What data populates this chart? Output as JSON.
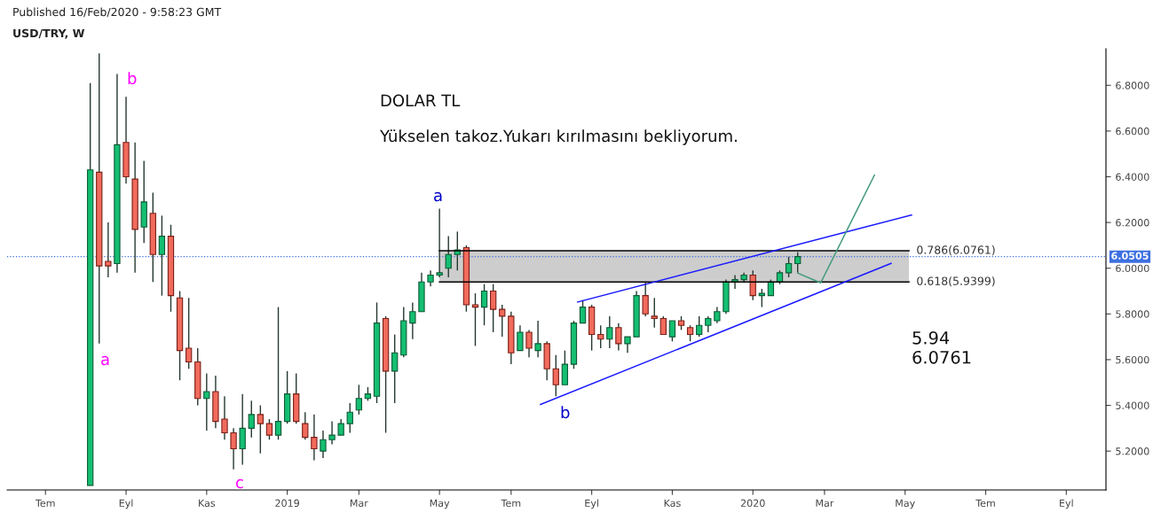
{
  "chart_data": {
    "type": "candlestick",
    "title": "USD/TRY, W",
    "subtitle": "Published 16/Feb/2020 - 9:58:23 GMT",
    "x": [
      "2018-08-06",
      "2018-08-13",
      "2018-08-20",
      "2018-08-27",
      "2018-09-03",
      "2018-09-10",
      "2018-09-17",
      "2018-09-24",
      "2018-10-01",
      "2018-10-08",
      "2018-10-15",
      "2018-10-22",
      "2018-10-29",
      "2018-11-05",
      "2018-11-12",
      "2018-11-19",
      "2018-11-26",
      "2018-12-03",
      "2018-12-10",
      "2018-12-17",
      "2018-12-24",
      "2018-12-31",
      "2019-01-07",
      "2019-01-14",
      "2019-01-21",
      "2019-01-28",
      "2019-02-04",
      "2019-02-11",
      "2019-02-18",
      "2019-02-25",
      "2019-03-04",
      "2019-03-11",
      "2019-03-18",
      "2019-03-25",
      "2019-04-01",
      "2019-04-08",
      "2019-04-15",
      "2019-04-22",
      "2019-04-29",
      "2019-05-06",
      "2019-05-13",
      "2019-05-20",
      "2019-05-27",
      "2019-06-03",
      "2019-06-10",
      "2019-06-17",
      "2019-06-24",
      "2019-07-01",
      "2019-07-08",
      "2019-07-15",
      "2019-07-22",
      "2019-07-29",
      "2019-08-05",
      "2019-08-12",
      "2019-08-19",
      "2019-08-26",
      "2019-09-02",
      "2019-09-09",
      "2019-09-16",
      "2019-09-23",
      "2019-09-30",
      "2019-10-07",
      "2019-10-14",
      "2019-10-21",
      "2019-10-28",
      "2019-11-04",
      "2019-11-11",
      "2019-11-18",
      "2019-11-25",
      "2019-12-02",
      "2019-12-09",
      "2019-12-16",
      "2019-12-23",
      "2019-12-30",
      "2020-01-06",
      "2020-01-13",
      "2020-01-20",
      "2020-01-27",
      "2020-02-03",
      "2020-02-10"
    ],
    "ohlc": [
      [
        5.05,
        6.81,
        5.05,
        6.43
      ],
      [
        6.42,
        6.94,
        5.67,
        6.01
      ],
      [
        6.03,
        6.2,
        5.96,
        6.01
      ],
      [
        6.02,
        6.85,
        5.98,
        6.54
      ],
      [
        6.55,
        6.75,
        6.37,
        6.4
      ],
      [
        6.39,
        6.55,
        5.98,
        6.17
      ],
      [
        6.18,
        6.47,
        6.11,
        6.29
      ],
      [
        6.24,
        6.33,
        5.94,
        6.06
      ],
      [
        6.06,
        6.23,
        5.88,
        6.14
      ],
      [
        6.14,
        6.19,
        5.81,
        5.88
      ],
      [
        5.87,
        5.9,
        5.51,
        5.64
      ],
      [
        5.65,
        5.87,
        5.56,
        5.59
      ],
      [
        5.59,
        5.65,
        5.4,
        5.43
      ],
      [
        5.43,
        5.54,
        5.29,
        5.46
      ],
      [
        5.46,
        5.53,
        5.3,
        5.33
      ],
      [
        5.34,
        5.44,
        5.25,
        5.28
      ],
      [
        5.28,
        5.3,
        5.12,
        5.21
      ],
      [
        5.21,
        5.45,
        5.14,
        5.3
      ],
      [
        5.3,
        5.42,
        5.26,
        5.36
      ],
      [
        5.36,
        5.4,
        5.19,
        5.32
      ],
      [
        5.32,
        5.34,
        5.25,
        5.27
      ],
      [
        5.27,
        5.83,
        5.25,
        5.33
      ],
      [
        5.33,
        5.55,
        5.32,
        5.45
      ],
      [
        5.45,
        5.54,
        5.32,
        5.33
      ],
      [
        5.32,
        5.37,
        5.25,
        5.26
      ],
      [
        5.26,
        5.36,
        5.16,
        5.21
      ],
      [
        5.2,
        5.29,
        5.17,
        5.25
      ],
      [
        5.25,
        5.33,
        5.23,
        5.27
      ],
      [
        5.27,
        5.34,
        5.27,
        5.32
      ],
      [
        5.32,
        5.41,
        5.28,
        5.37
      ],
      [
        5.38,
        5.49,
        5.36,
        5.43
      ],
      [
        5.43,
        5.48,
        5.42,
        5.45
      ],
      [
        5.44,
        5.85,
        5.41,
        5.76
      ],
      [
        5.78,
        5.79,
        5.28,
        5.55
      ],
      [
        5.55,
        5.71,
        5.41,
        5.63
      ],
      [
        5.62,
        5.83,
        5.61,
        5.77
      ],
      [
        5.76,
        5.85,
        5.69,
        5.81
      ],
      [
        5.81,
        5.98,
        5.81,
        5.94
      ],
      [
        5.94,
        5.99,
        5.92,
        5.97
      ],
      [
        5.97,
        6.26,
        5.96,
        5.98
      ],
      [
        6.0,
        6.14,
        5.96,
        6.06
      ],
      [
        6.06,
        6.16,
        5.99,
        6.08
      ],
      [
        6.09,
        6.1,
        5.81,
        5.84
      ],
      [
        5.84,
        5.89,
        5.66,
        5.83
      ],
      [
        5.83,
        5.93,
        5.75,
        5.9
      ],
      [
        5.9,
        5.93,
        5.72,
        5.82
      ],
      [
        5.82,
        5.84,
        5.7,
        5.79
      ],
      [
        5.79,
        5.81,
        5.58,
        5.63
      ],
      [
        5.64,
        5.75,
        5.64,
        5.72
      ],
      [
        5.72,
        5.73,
        5.61,
        5.65
      ],
      [
        5.64,
        5.77,
        5.61,
        5.67
      ],
      [
        5.67,
        5.68,
        5.51,
        5.56
      ],
      [
        5.56,
        5.62,
        5.44,
        5.49
      ],
      [
        5.49,
        5.64,
        5.49,
        5.58
      ],
      [
        5.58,
        5.77,
        5.56,
        5.76
      ],
      [
        5.76,
        5.86,
        5.76,
        5.83
      ],
      [
        5.83,
        5.84,
        5.64,
        5.71
      ],
      [
        5.71,
        5.75,
        5.65,
        5.69
      ],
      [
        5.69,
        5.79,
        5.65,
        5.74
      ],
      [
        5.74,
        5.76,
        5.64,
        5.67
      ],
      [
        5.67,
        5.7,
        5.63,
        5.7
      ],
      [
        5.7,
        5.9,
        5.7,
        5.88
      ],
      [
        5.88,
        5.94,
        5.79,
        5.8
      ],
      [
        5.79,
        5.87,
        5.74,
        5.78
      ],
      [
        5.78,
        5.79,
        5.71,
        5.71
      ],
      [
        5.7,
        5.77,
        5.68,
        5.77
      ],
      [
        5.77,
        5.79,
        5.73,
        5.75
      ],
      [
        5.74,
        5.75,
        5.68,
        5.71
      ],
      [
        5.71,
        5.79,
        5.7,
        5.75
      ],
      [
        5.75,
        5.79,
        5.72,
        5.78
      ],
      [
        5.77,
        5.83,
        5.76,
        5.81
      ],
      [
        5.81,
        5.95,
        5.8,
        5.94
      ],
      [
        5.94,
        5.97,
        5.91,
        5.95
      ],
      [
        5.95,
        5.98,
        5.94,
        5.97
      ],
      [
        5.97,
        5.99,
        5.86,
        5.88
      ],
      [
        5.88,
        5.91,
        5.83,
        5.89
      ],
      [
        5.88,
        5.95,
        5.88,
        5.94
      ],
      [
        5.94,
        5.99,
        5.93,
        5.98
      ],
      [
        5.98,
        6.05,
        5.96,
        6.02
      ],
      [
        6.02,
        6.07,
        5.98,
        6.0505
      ]
    ],
    "series": [
      {
        "type": "line",
        "x": [
          "2019-05-06",
          "2020-05-07"
        ],
        "values": [
          6.0761,
          6.0761
        ],
        "lower": [
          5.9399,
          5.9399
        ],
        "upper": [
          6.0761,
          6.0761
        ],
        "color": "#000000"
      },
      {
        "type": "line",
        "x": [
          "2019-05-06",
          "2020-05-07"
        ],
        "values": [
          5.9399,
          5.9399
        ],
        "color": "#000000"
      },
      {
        "type": "line",
        "x": [
          "2019-08-22",
          "2020-05-09"
        ],
        "values": [
          5.852,
          6.233
        ],
        "color": "#1a1aff"
      },
      {
        "type": "line",
        "x": [
          "2019-07-24",
          "2020-04-23"
        ],
        "values": [
          5.404,
          6.021
        ],
        "color": "#1a1aff"
      },
      {
        "type": "line",
        "x": [
          "2020-02-10",
          "2020-02-28",
          "2020-04-10"
        ],
        "values": [
          5.979,
          5.936,
          6.407
        ],
        "color": "#3f9a7e"
      }
    ],
    "xlim": [
      "2018-06-02",
      "2020-10-08"
    ],
    "xticks": [
      {
        "value": "2018-07-02",
        "label": "Tem"
      },
      {
        "value": "2018-09-03",
        "label": "Eyl"
      },
      {
        "value": "2018-11-05",
        "label": "Kas"
      },
      {
        "value": "2019-01-07",
        "label": "2019"
      },
      {
        "value": "2019-03-04",
        "label": "Mar"
      },
      {
        "value": "2019-05-06",
        "label": "May"
      },
      {
        "value": "2019-07-01",
        "label": "Tem"
      },
      {
        "value": "2019-09-02",
        "label": "Eyl"
      },
      {
        "value": "2019-11-04",
        "label": "Kas"
      },
      {
        "value": "2020-01-06",
        "label": "2020"
      },
      {
        "value": "2020-03-02",
        "label": "Mar"
      },
      {
        "value": "2020-05-04",
        "label": "May"
      },
      {
        "value": "2020-07-06",
        "label": "Tem"
      },
      {
        "value": "2020-09-07",
        "label": "Eyl"
      }
    ],
    "ylim": [
      5.03,
      6.96
    ],
    "yticks": [
      {
        "value": 5.2,
        "label": "5.2000"
      },
      {
        "value": 5.4,
        "label": "5.4000"
      },
      {
        "value": 5.6,
        "label": "5.6000"
      },
      {
        "value": 5.8,
        "label": "5.8000"
      },
      {
        "value": 6.0,
        "label": "6.0000"
      },
      {
        "value": 6.2,
        "label": "6.2000"
      },
      {
        "value": 6.4,
        "label": "6.4000"
      },
      {
        "value": 6.6,
        "label": "6.6000"
      },
      {
        "value": 6.8,
        "label": "6.8000"
      }
    ],
    "ref_lines": [
      {
        "axis": "y",
        "value": 6.0505,
        "label": "6.0505",
        "color": "#3d6fe0",
        "line_style": "dotted"
      }
    ],
    "annotations": [
      "DOLAR TL",
      "Yükselen takoz.Yukarı kırılmasını bekliyorum.",
      "5.94",
      "6.0761",
      {
        "text": "0.786(6.0761)",
        "x": "2020-05-07",
        "y": 6.0761
      },
      {
        "text": "0.618(5.9399)",
        "x": "2020-05-07",
        "y": 5.9399
      },
      "b",
      "a",
      "c",
      "a",
      "b"
    ],
    "grid": false
  }
}
